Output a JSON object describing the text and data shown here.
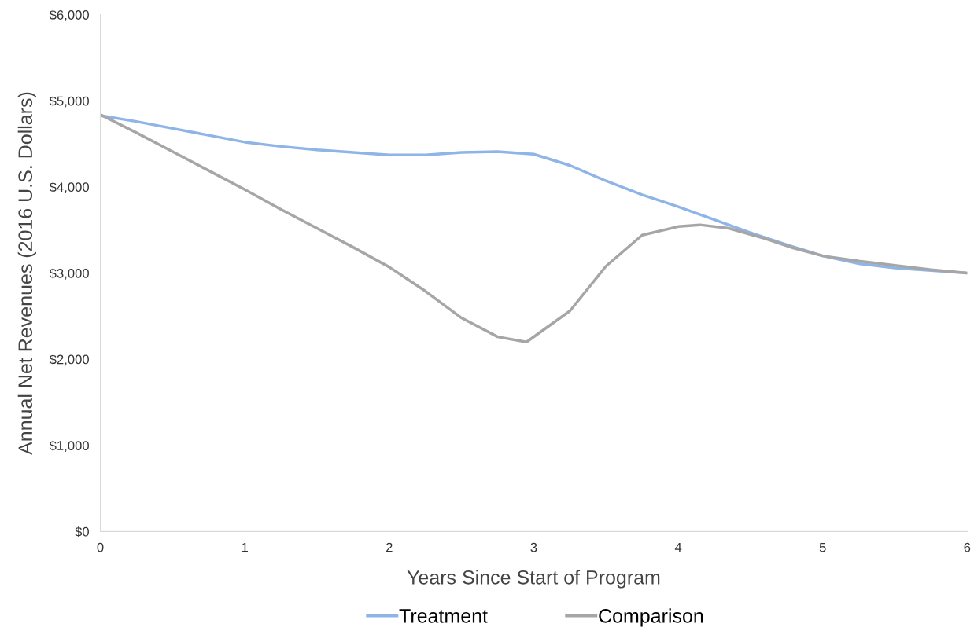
{
  "chart_data": {
    "type": "line",
    "xlabel": "Years Since Start of Program",
    "ylabel": "Annual Net Revenues (2016 U.S. Dollars)",
    "series": [
      {
        "name": "Treatment",
        "color": "#8eb4e8",
        "x": [
          0,
          0.25,
          0.5,
          0.75,
          1,
          1.25,
          1.5,
          1.75,
          2,
          2.25,
          2.5,
          2.75,
          3,
          3.25,
          3.5,
          3.75,
          4,
          4.25,
          4.5,
          4.75,
          5,
          5.25,
          5.5,
          5.75,
          6
        ],
        "values": [
          4830,
          4760,
          4680,
          4600,
          4520,
          4470,
          4430,
          4400,
          4370,
          4370,
          4400,
          4410,
          4380,
          4250,
          4070,
          3910,
          3770,
          3620,
          3470,
          3330,
          3200,
          3110,
          3060,
          3030,
          3000
        ]
      },
      {
        "name": "Comparison",
        "color": "#a6a6a6",
        "x": [
          0,
          0.25,
          0.5,
          0.75,
          1,
          1.25,
          1.5,
          1.75,
          2,
          2.25,
          2.5,
          2.75,
          2.95,
          3.25,
          3.5,
          3.75,
          4,
          4.15,
          4.35,
          4.6,
          4.8,
          5,
          5.25,
          5.5,
          5.75,
          6
        ],
        "values": [
          4840,
          4630,
          4410,
          4190,
          3970,
          3740,
          3520,
          3300,
          3070,
          2790,
          2480,
          2260,
          2200,
          2560,
          3080,
          3440,
          3540,
          3560,
          3520,
          3400,
          3290,
          3200,
          3140,
          3090,
          3040,
          3000
        ]
      }
    ],
    "xlim": [
      0,
      6
    ],
    "xticks": [
      0,
      1,
      2,
      3,
      4,
      5,
      6
    ],
    "ylim": [
      0,
      6000
    ],
    "yticks": [
      {
        "value": 0,
        "label": "$0"
      },
      {
        "value": 1000,
        "label": "$1,000"
      },
      {
        "value": 2000,
        "label": "$2,000"
      },
      {
        "value": 3000,
        "label": "$3,000"
      },
      {
        "value": 4000,
        "label": "$4,000"
      },
      {
        "value": 5000,
        "label": "$5,000"
      },
      {
        "value": 6000,
        "label": "$6,000"
      }
    ],
    "grid": false,
    "legend": "bottom",
    "marker": "none",
    "line_style": "solid"
  }
}
